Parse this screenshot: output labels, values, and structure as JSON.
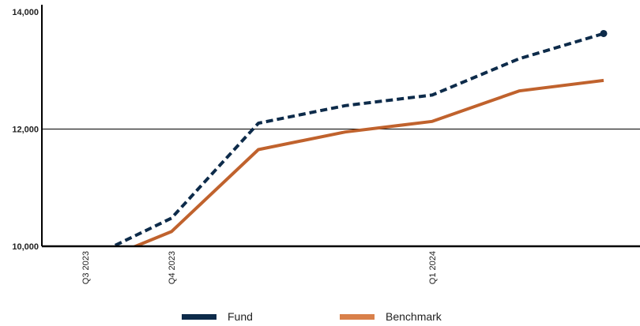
{
  "chart_data": {
    "type": "line",
    "title": "",
    "xlabel": "",
    "ylabel": "",
    "ylim": [
      10000,
      14000
    ],
    "yticks": [
      10000,
      12000,
      14000
    ],
    "ytick_labels": [
      "10,000",
      "12,000",
      "14,000"
    ],
    "ygrid": [
      12000
    ],
    "x_tick_labels": [
      {
        "label": "Q3 2023",
        "index": 0
      },
      {
        "label": "Q4 2023",
        "index": 1
      },
      {
        "label": "Q1 2024",
        "index": 4
      }
    ],
    "n_points": 7,
    "series": [
      {
        "name": "Fund",
        "color": "#0d2b4a",
        "style": "dashed",
        "end_marker": true,
        "values": [
          9770,
          10480,
          12100,
          12400,
          12580,
          13200,
          13630
        ]
      },
      {
        "name": "Benchmark",
        "color": "#c0622d",
        "legend_color": "#d9804a",
        "style": "solid",
        "end_marker": false,
        "values": [
          9650,
          10250,
          11650,
          11950,
          12130,
          12650,
          12830
        ]
      }
    ],
    "legend_position": "bottom-center",
    "grid": false
  }
}
